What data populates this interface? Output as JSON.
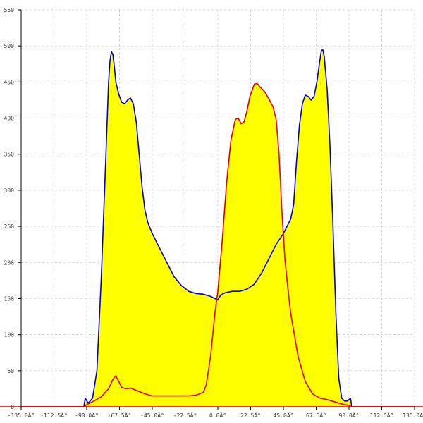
{
  "chart_data": {
    "type": "area",
    "title": "",
    "xlabel": "",
    "ylabel": "",
    "xlim": [
      -135,
      135
    ],
    "ylim": [
      0,
      550
    ],
    "grid": true,
    "x_ticks": [
      {
        "value": -135,
        "label": "-135.0Â°"
      },
      {
        "value": -112.5,
        "label": "-112.5Â°"
      },
      {
        "value": -90,
        "label": "-90.0Â°"
      },
      {
        "value": -67.5,
        "label": "-67.5Â°"
      },
      {
        "value": -45,
        "label": "-45.0Â°"
      },
      {
        "value": -22.5,
        "label": "-22.5Â°"
      },
      {
        "value": 0,
        "label": "0.0Â°"
      },
      {
        "value": 22.5,
        "label": "22.5Â°"
      },
      {
        "value": 45,
        "label": "45.0Â°"
      },
      {
        "value": 67.5,
        "label": "67.5Â°"
      },
      {
        "value": 90,
        "label": "90.0Â°"
      },
      {
        "value": 112.5,
        "label": "112.5Â°"
      },
      {
        "value": 135,
        "label": "135.0Â°"
      }
    ],
    "y_ticks": [
      {
        "value": 0,
        "label": "0"
      },
      {
        "value": 50,
        "label": "50"
      },
      {
        "value": 100,
        "label": "100"
      },
      {
        "value": 150,
        "label": "150"
      },
      {
        "value": 200,
        "label": "200"
      },
      {
        "value": 250,
        "label": "250"
      },
      {
        "value": 300,
        "label": "300"
      },
      {
        "value": 350,
        "label": "350"
      },
      {
        "value": 400,
        "label": "400"
      },
      {
        "value": 450,
        "label": "450"
      },
      {
        "value": 500,
        "label": "500"
      },
      {
        "value": 550,
        "label": "550"
      }
    ],
    "colors": {
      "fill": "#ffff00",
      "grid": "#c8c8c8",
      "axis": "#000000"
    },
    "series": [
      {
        "color": "#0000cc",
        "points": [
          [
            -135,
            0
          ],
          [
            -92,
            0
          ],
          [
            -91,
            12
          ],
          [
            -89,
            5
          ],
          [
            -86,
            12
          ],
          [
            -83,
            50
          ],
          [
            -80,
            180
          ],
          [
            -77,
            340
          ],
          [
            -75,
            450
          ],
          [
            -74,
            480
          ],
          [
            -73,
            492
          ],
          [
            -72,
            488
          ],
          [
            -71,
            470
          ],
          [
            -70,
            450
          ],
          [
            -68,
            433
          ],
          [
            -66,
            422
          ],
          [
            -64,
            420
          ],
          [
            -62,
            425
          ],
          [
            -60,
            428
          ],
          [
            -58,
            420
          ],
          [
            -56,
            395
          ],
          [
            -54,
            350
          ],
          [
            -52,
            305
          ],
          [
            -50,
            272
          ],
          [
            -48,
            255
          ],
          [
            -45,
            240
          ],
          [
            -40,
            220
          ],
          [
            -35,
            200
          ],
          [
            -30,
            180
          ],
          [
            -25,
            168
          ],
          [
            -20,
            160
          ],
          [
            -15,
            157
          ],
          [
            -10,
            156
          ],
          [
            -5,
            153
          ],
          [
            -1,
            149
          ],
          [
            0,
            148
          ],
          [
            2,
            155
          ],
          [
            5,
            158
          ],
          [
            10,
            160
          ],
          [
            15,
            160
          ],
          [
            20,
            163
          ],
          [
            25,
            170
          ],
          [
            30,
            185
          ],
          [
            35,
            205
          ],
          [
            40,
            225
          ],
          [
            45,
            240
          ],
          [
            50,
            260
          ],
          [
            52,
            280
          ],
          [
            54,
            340
          ],
          [
            56,
            390
          ],
          [
            58,
            420
          ],
          [
            60,
            432
          ],
          [
            62,
            430
          ],
          [
            64,
            425
          ],
          [
            66,
            430
          ],
          [
            68,
            450
          ],
          [
            70,
            480
          ],
          [
            71,
            493
          ],
          [
            72,
            495
          ],
          [
            73,
            485
          ],
          [
            75,
            440
          ],
          [
            77,
            360
          ],
          [
            79,
            250
          ],
          [
            81,
            130
          ],
          [
            83,
            40
          ],
          [
            85,
            12
          ],
          [
            87,
            8
          ],
          [
            89,
            8
          ],
          [
            91,
            12
          ],
          [
            92,
            0
          ],
          [
            135,
            0
          ]
        ]
      },
      {
        "color": "#dd0000",
        "points": [
          [
            -135,
            0
          ],
          [
            -92,
            0
          ],
          [
            -90,
            3
          ],
          [
            -85,
            8
          ],
          [
            -80,
            14
          ],
          [
            -75,
            25
          ],
          [
            -72,
            38
          ],
          [
            -70,
            43
          ],
          [
            -68,
            35
          ],
          [
            -66,
            27
          ],
          [
            -63,
            25
          ],
          [
            -60,
            26
          ],
          [
            -55,
            22
          ],
          [
            -50,
            18
          ],
          [
            -45,
            15
          ],
          [
            -40,
            15
          ],
          [
            -35,
            15
          ],
          [
            -30,
            15
          ],
          [
            -25,
            15
          ],
          [
            -20,
            15
          ],
          [
            -15,
            16
          ],
          [
            -10,
            20
          ],
          [
            -8,
            30
          ],
          [
            -5,
            70
          ],
          [
            -2,
            130
          ],
          [
            0,
            160
          ],
          [
            3,
            230
          ],
          [
            6,
            310
          ],
          [
            9,
            370
          ],
          [
            12,
            398
          ],
          [
            14,
            400
          ],
          [
            16,
            392
          ],
          [
            18,
            395
          ],
          [
            20,
            410
          ],
          [
            22,
            430
          ],
          [
            25,
            447
          ],
          [
            27,
            448
          ],
          [
            29,
            443
          ],
          [
            32,
            437
          ],
          [
            35,
            427
          ],
          [
            38,
            415
          ],
          [
            40,
            398
          ],
          [
            42,
            350
          ],
          [
            44,
            270
          ],
          [
            46,
            205
          ],
          [
            48,
            165
          ],
          [
            50,
            130
          ],
          [
            55,
            70
          ],
          [
            60,
            35
          ],
          [
            65,
            18
          ],
          [
            70,
            12
          ],
          [
            75,
            10
          ],
          [
            80,
            7
          ],
          [
            85,
            4
          ],
          [
            90,
            2
          ],
          [
            92,
            0
          ],
          [
            135,
            0
          ]
        ]
      }
    ]
  }
}
